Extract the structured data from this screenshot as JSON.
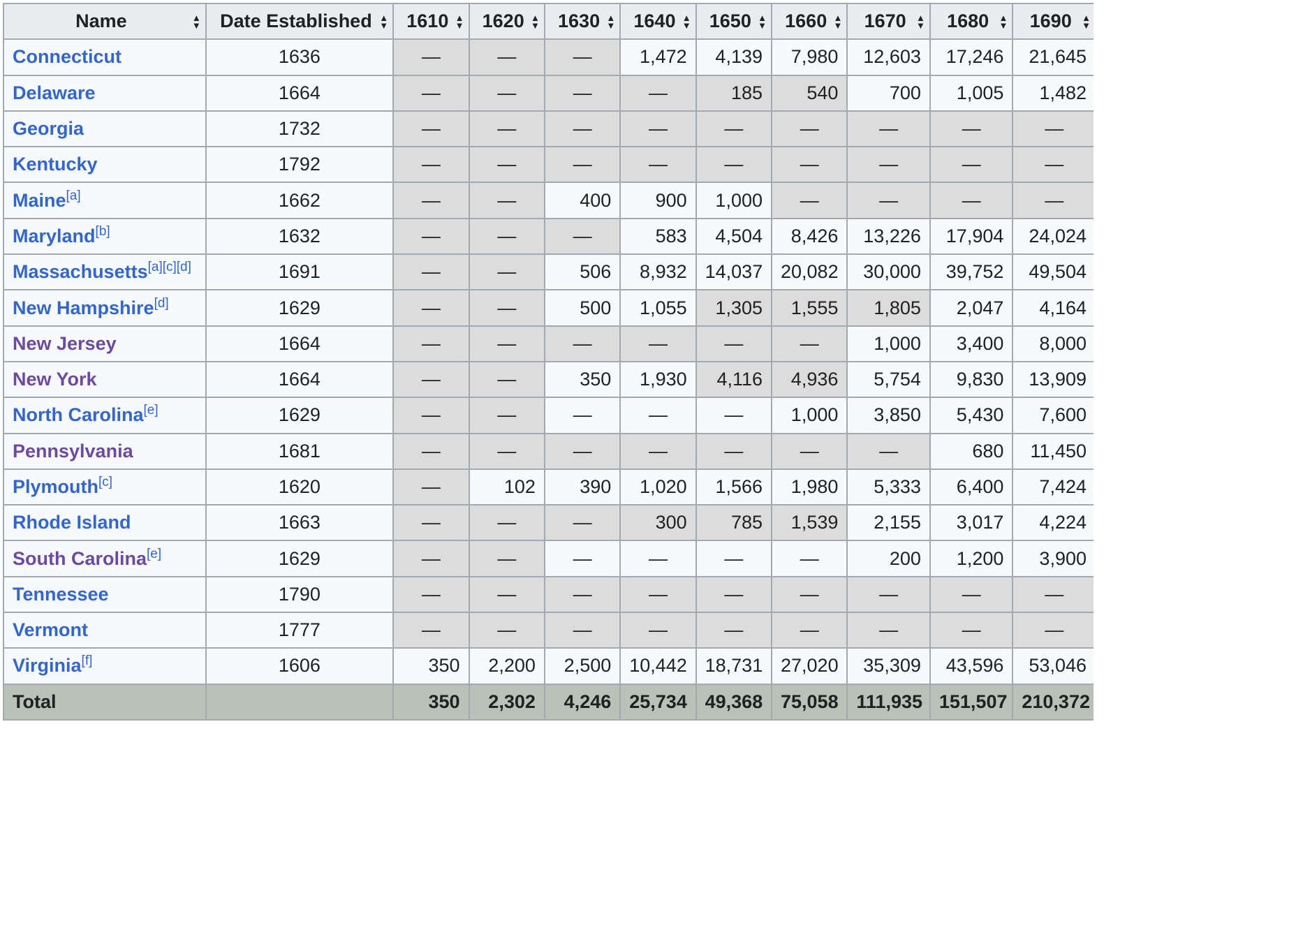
{
  "headers": [
    "Name",
    "Date Established",
    "1610",
    "1620",
    "1630",
    "1640",
    "1650",
    "1660",
    "1670",
    "1680",
    "1690"
  ],
  "rows": [
    {
      "name": "Connecticut",
      "sup": "",
      "visited": false,
      "date": "1636",
      "cells": [
        {
          "v": "—",
          "g": true
        },
        {
          "v": "—",
          "g": true
        },
        {
          "v": "—",
          "g": true
        },
        {
          "v": "1,472",
          "g": false
        },
        {
          "v": "4,139",
          "g": false
        },
        {
          "v": "7,980",
          "g": false
        },
        {
          "v": "12,603",
          "g": false
        },
        {
          "v": "17,246",
          "g": false
        },
        {
          "v": "21,645",
          "g": false
        }
      ]
    },
    {
      "name": "Delaware",
      "sup": "",
      "visited": false,
      "date": "1664",
      "cells": [
        {
          "v": "—",
          "g": true
        },
        {
          "v": "—",
          "g": true
        },
        {
          "v": "—",
          "g": true
        },
        {
          "v": "—",
          "g": true
        },
        {
          "v": "185",
          "g": true
        },
        {
          "v": "540",
          "g": true
        },
        {
          "v": "700",
          "g": false
        },
        {
          "v": "1,005",
          "g": false
        },
        {
          "v": "1,482",
          "g": false
        }
      ]
    },
    {
      "name": "Georgia",
      "sup": "",
      "visited": false,
      "date": "1732",
      "cells": [
        {
          "v": "—",
          "g": true
        },
        {
          "v": "—",
          "g": true
        },
        {
          "v": "—",
          "g": true
        },
        {
          "v": "—",
          "g": true
        },
        {
          "v": "—",
          "g": true
        },
        {
          "v": "—",
          "g": true
        },
        {
          "v": "—",
          "g": true
        },
        {
          "v": "—",
          "g": true
        },
        {
          "v": "—",
          "g": true
        }
      ]
    },
    {
      "name": "Kentucky",
      "sup": "",
      "visited": false,
      "date": "1792",
      "cells": [
        {
          "v": "—",
          "g": true
        },
        {
          "v": "—",
          "g": true
        },
        {
          "v": "—",
          "g": true
        },
        {
          "v": "—",
          "g": true
        },
        {
          "v": "—",
          "g": true
        },
        {
          "v": "—",
          "g": true
        },
        {
          "v": "—",
          "g": true
        },
        {
          "v": "—",
          "g": true
        },
        {
          "v": "—",
          "g": true
        }
      ]
    },
    {
      "name": "Maine",
      "sup": "[a]",
      "visited": false,
      "date": "1662",
      "cells": [
        {
          "v": "—",
          "g": true
        },
        {
          "v": "—",
          "g": true
        },
        {
          "v": "400",
          "g": false
        },
        {
          "v": "900",
          "g": false
        },
        {
          "v": "1,000",
          "g": false
        },
        {
          "v": "—",
          "g": true
        },
        {
          "v": "—",
          "g": true
        },
        {
          "v": "—",
          "g": true
        },
        {
          "v": "—",
          "g": true
        }
      ]
    },
    {
      "name": "Maryland",
      "sup": "[b]",
      "visited": false,
      "date": "1632",
      "cells": [
        {
          "v": "—",
          "g": true
        },
        {
          "v": "—",
          "g": true
        },
        {
          "v": "—",
          "g": true
        },
        {
          "v": "583",
          "g": false
        },
        {
          "v": "4,504",
          "g": false
        },
        {
          "v": "8,426",
          "g": false
        },
        {
          "v": "13,226",
          "g": false
        },
        {
          "v": "17,904",
          "g": false
        },
        {
          "v": "24,024",
          "g": false
        }
      ]
    },
    {
      "name": "Massachusetts",
      "sup": "[a][c][d]",
      "visited": false,
      "date": "1691",
      "cells": [
        {
          "v": "—",
          "g": true
        },
        {
          "v": "—",
          "g": true
        },
        {
          "v": "506",
          "g": false
        },
        {
          "v": "8,932",
          "g": false
        },
        {
          "v": "14,037",
          "g": false
        },
        {
          "v": "20,082",
          "g": false
        },
        {
          "v": "30,000",
          "g": false
        },
        {
          "v": "39,752",
          "g": false
        },
        {
          "v": "49,504",
          "g": false
        }
      ]
    },
    {
      "name": "New Hampshire",
      "sup": "[d]",
      "visited": false,
      "date": "1629",
      "cells": [
        {
          "v": "—",
          "g": true
        },
        {
          "v": "—",
          "g": true
        },
        {
          "v": "500",
          "g": false
        },
        {
          "v": "1,055",
          "g": false
        },
        {
          "v": "1,305",
          "g": true
        },
        {
          "v": "1,555",
          "g": true
        },
        {
          "v": "1,805",
          "g": true
        },
        {
          "v": "2,047",
          "g": false
        },
        {
          "v": "4,164",
          "g": false
        }
      ]
    },
    {
      "name": "New Jersey",
      "sup": "",
      "visited": true,
      "date": "1664",
      "cells": [
        {
          "v": "—",
          "g": true
        },
        {
          "v": "—",
          "g": true
        },
        {
          "v": "—",
          "g": true
        },
        {
          "v": "—",
          "g": true
        },
        {
          "v": "—",
          "g": true
        },
        {
          "v": "—",
          "g": true
        },
        {
          "v": "1,000",
          "g": false
        },
        {
          "v": "3,400",
          "g": false
        },
        {
          "v": "8,000",
          "g": false
        }
      ]
    },
    {
      "name": "New York",
      "sup": "",
      "visited": true,
      "date": "1664",
      "cells": [
        {
          "v": "—",
          "g": true
        },
        {
          "v": "—",
          "g": true
        },
        {
          "v": "350",
          "g": false
        },
        {
          "v": "1,930",
          "g": false
        },
        {
          "v": "4,116",
          "g": true
        },
        {
          "v": "4,936",
          "g": true
        },
        {
          "v": "5,754",
          "g": false
        },
        {
          "v": "9,830",
          "g": false
        },
        {
          "v": "13,909",
          "g": false
        }
      ]
    },
    {
      "name": "North Carolina",
      "sup": "[e]",
      "visited": false,
      "date": "1629",
      "cells": [
        {
          "v": "—",
          "g": true
        },
        {
          "v": "—",
          "g": true
        },
        {
          "v": "—",
          "g": false
        },
        {
          "v": "—",
          "g": false
        },
        {
          "v": "—",
          "g": false
        },
        {
          "v": "1,000",
          "g": false
        },
        {
          "v": "3,850",
          "g": false
        },
        {
          "v": "5,430",
          "g": false
        },
        {
          "v": "7,600",
          "g": false
        }
      ]
    },
    {
      "name": "Pennsylvania",
      "sup": "",
      "visited": true,
      "date": "1681",
      "cells": [
        {
          "v": "—",
          "g": true
        },
        {
          "v": "—",
          "g": true
        },
        {
          "v": "—",
          "g": true
        },
        {
          "v": "—",
          "g": true
        },
        {
          "v": "—",
          "g": true
        },
        {
          "v": "—",
          "g": true
        },
        {
          "v": "—",
          "g": true
        },
        {
          "v": "680",
          "g": false
        },
        {
          "v": "11,450",
          "g": false
        }
      ]
    },
    {
      "name": "Plymouth",
      "sup": "[c]",
      "visited": false,
      "date": "1620",
      "cells": [
        {
          "v": "—",
          "g": true
        },
        {
          "v": "102",
          "g": false
        },
        {
          "v": "390",
          "g": false
        },
        {
          "v": "1,020",
          "g": false
        },
        {
          "v": "1,566",
          "g": false
        },
        {
          "v": "1,980",
          "g": false
        },
        {
          "v": "5,333",
          "g": false
        },
        {
          "v": "6,400",
          "g": false
        },
        {
          "v": "7,424",
          "g": false
        }
      ]
    },
    {
      "name": "Rhode Island",
      "sup": "",
      "visited": false,
      "date": "1663",
      "cells": [
        {
          "v": "—",
          "g": true
        },
        {
          "v": "—",
          "g": true
        },
        {
          "v": "—",
          "g": true
        },
        {
          "v": "300",
          "g": true
        },
        {
          "v": "785",
          "g": true
        },
        {
          "v": "1,539",
          "g": true
        },
        {
          "v": "2,155",
          "g": false
        },
        {
          "v": "3,017",
          "g": false
        },
        {
          "v": "4,224",
          "g": false
        }
      ]
    },
    {
      "name": "South Carolina",
      "sup": "[e]",
      "visited": true,
      "date": "1629",
      "cells": [
        {
          "v": "—",
          "g": true
        },
        {
          "v": "—",
          "g": true
        },
        {
          "v": "—",
          "g": false
        },
        {
          "v": "—",
          "g": false
        },
        {
          "v": "—",
          "g": false
        },
        {
          "v": "—",
          "g": false
        },
        {
          "v": "200",
          "g": false
        },
        {
          "v": "1,200",
          "g": false
        },
        {
          "v": "3,900",
          "g": false
        }
      ]
    },
    {
      "name": "Tennessee",
      "sup": "",
      "visited": false,
      "date": "1790",
      "cells": [
        {
          "v": "—",
          "g": true
        },
        {
          "v": "—",
          "g": true
        },
        {
          "v": "—",
          "g": true
        },
        {
          "v": "—",
          "g": true
        },
        {
          "v": "—",
          "g": true
        },
        {
          "v": "—",
          "g": true
        },
        {
          "v": "—",
          "g": true
        },
        {
          "v": "—",
          "g": true
        },
        {
          "v": "—",
          "g": true
        }
      ]
    },
    {
      "name": "Vermont",
      "sup": "",
      "visited": false,
      "date": "1777",
      "cells": [
        {
          "v": "—",
          "g": true
        },
        {
          "v": "—",
          "g": true
        },
        {
          "v": "—",
          "g": true
        },
        {
          "v": "—",
          "g": true
        },
        {
          "v": "—",
          "g": true
        },
        {
          "v": "—",
          "g": true
        },
        {
          "v": "—",
          "g": true
        },
        {
          "v": "—",
          "g": true
        },
        {
          "v": "—",
          "g": true
        }
      ]
    },
    {
      "name": "Virginia",
      "sup": "[f]",
      "visited": false,
      "date": "1606",
      "cells": [
        {
          "v": "350",
          "g": false
        },
        {
          "v": "2,200",
          "g": false
        },
        {
          "v": "2,500",
          "g": false
        },
        {
          "v": "10,442",
          "g": false
        },
        {
          "v": "18,731",
          "g": false
        },
        {
          "v": "27,020",
          "g": false
        },
        {
          "v": "35,309",
          "g": false
        },
        {
          "v": "43,596",
          "g": false
        },
        {
          "v": "53,046",
          "g": false
        }
      ]
    }
  ],
  "total": {
    "label": "Total",
    "date": "",
    "values": [
      "350",
      "2,302",
      "4,246",
      "25,734",
      "49,368",
      "75,058",
      "111,935",
      "151,507",
      "210,372"
    ]
  },
  "colors": {
    "link": "#3366cc",
    "visited_link": "#6b4ba1",
    "header_bg": "#eaecf0",
    "empty_cell_bg": "#dcdcdc",
    "total_bg": "#b9c1b8",
    "border": "#a2a9b1"
  },
  "icons": {
    "sort": "sort-icon"
  }
}
